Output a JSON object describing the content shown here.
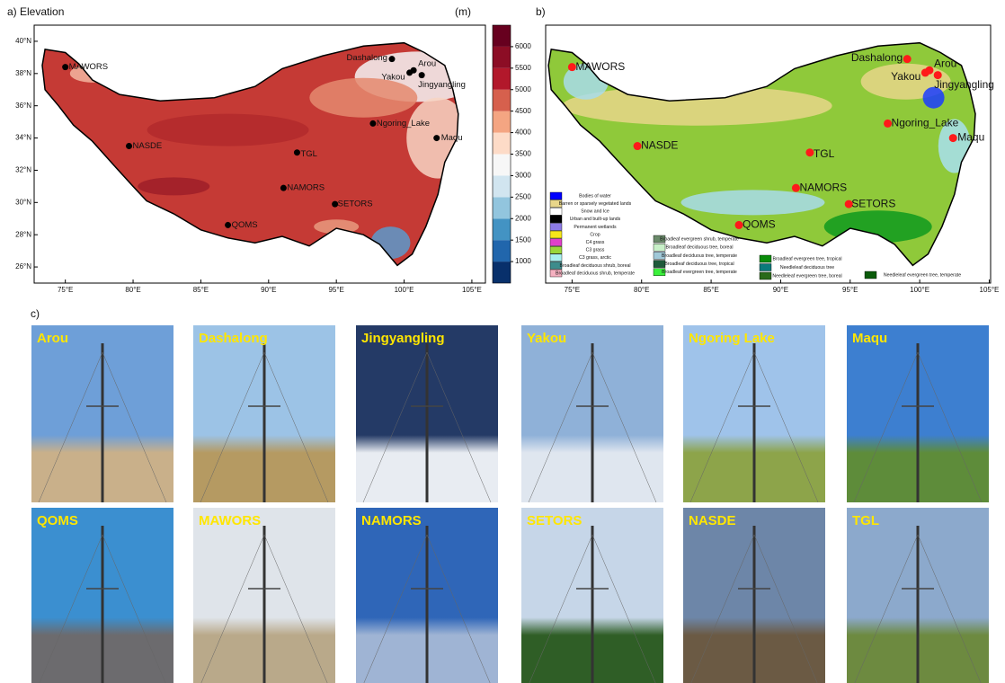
{
  "chart_data": [
    {
      "type": "map",
      "title": "a) Elevation",
      "colorbar_label": "(m)",
      "xlim": [
        72.7,
        106
      ],
      "ylim": [
        25,
        41
      ],
      "xticks": [
        {
          "value": 75,
          "label": "75°E"
        },
        {
          "value": 80,
          "label": "80°E"
        },
        {
          "value": 85,
          "label": "85°E"
        },
        {
          "value": 90,
          "label": "90°E"
        },
        {
          "value": 95,
          "label": "95°E"
        },
        {
          "value": 100,
          "label": "100°E"
        },
        {
          "value": 105,
          "label": "105°E"
        }
      ],
      "yticks": [
        {
          "value": 26,
          "label": "26°N"
        },
        {
          "value": 28,
          "label": "28°N"
        },
        {
          "value": 30,
          "label": "30°N"
        },
        {
          "value": 32,
          "label": "32°N"
        },
        {
          "value": 34,
          "label": "34°N"
        },
        {
          "value": 36,
          "label": "36°N"
        },
        {
          "value": 38,
          "label": "38°N"
        },
        {
          "value": 40,
          "label": "40°N"
        }
      ],
      "marker_color": "#000000",
      "stations": {
        "names": [
          "MAWORS",
          "Dashalong",
          "Arou",
          "Yakou",
          "Jingyangling",
          "Ngoring_Lake",
          "Maqu",
          "NASDE",
          "TGL",
          "NAMORS",
          "SETORS",
          "QOMS"
        ],
        "lon": [
          75.0,
          99.1,
          100.7,
          100.4,
          101.3,
          97.7,
          102.4,
          79.7,
          92.1,
          91.1,
          94.9,
          87.0
        ],
        "lat": [
          38.4,
          38.9,
          38.2,
          38.05,
          37.9,
          34.9,
          34.0,
          33.5,
          33.1,
          30.9,
          29.9,
          28.6
        ]
      },
      "colorbar": {
        "lim": [
          500,
          6500
        ],
        "ticks": [
          1000,
          1500,
          2000,
          2500,
          3000,
          3500,
          4000,
          4500,
          5000,
          5500,
          6000
        ],
        "colors": [
          "#08306b",
          "#2166ac",
          "#4393c3",
          "#92c5de",
          "#d1e5f0",
          "#f7f7f7",
          "#fddbc7",
          "#f4a582",
          "#d6604d",
          "#b2182b",
          "#8c0d25",
          "#67001f"
        ]
      }
    },
    {
      "type": "map",
      "title": "b)",
      "xlim": [
        73.1,
        105.1
      ],
      "ylim": [
        25,
        41
      ],
      "xticks": [
        {
          "value": 75,
          "label": "75°E"
        },
        {
          "value": 80,
          "label": "80°E"
        },
        {
          "value": 85,
          "label": "85°E"
        },
        {
          "value": 90,
          "label": "90°E"
        },
        {
          "value": 95,
          "label": "95°E"
        },
        {
          "value": 100,
          "label": "100°E"
        },
        {
          "value": 105,
          "label": "105°E"
        }
      ],
      "marker_color": "#ff1a1a",
      "stations": {
        "names": [
          "MAWORS",
          "Dashalong",
          "Arou",
          "Yakou",
          "Jingyangling",
          "Ngoring_Lake",
          "Maqu",
          "NASDE",
          "TGL",
          "NAMORS",
          "SETORS",
          "QOMS"
        ],
        "lon": [
          75.0,
          99.1,
          100.7,
          100.4,
          101.3,
          97.7,
          102.4,
          79.7,
          92.1,
          91.1,
          94.9,
          87.0
        ],
        "lat": [
          38.4,
          38.9,
          38.2,
          38.05,
          37.9,
          34.9,
          34.0,
          33.5,
          33.1,
          30.9,
          29.9,
          28.6
        ]
      },
      "legend": [
        {
          "name": "Bodies of water",
          "color": "#0000ff"
        },
        {
          "name": "Barren or sparsely vegetated lands",
          "color": "#e8d68a"
        },
        {
          "name": "Snow and Ice",
          "color": "#ffffff"
        },
        {
          "name": "Urban and built-up lands",
          "color": "#000000"
        },
        {
          "name": "Permanent wetlands",
          "color": "#8c7ae6"
        },
        {
          "name": "Crop",
          "color": "#f5e61b"
        },
        {
          "name": "C4 grass",
          "color": "#e040c8"
        },
        {
          "name": "C3 grass",
          "color": "#9ad63a"
        },
        {
          "name": "C3 grass, arctic",
          "color": "#a8f0f0"
        },
        {
          "name": "Broadleaf deciduous shrub, boreal",
          "color": "#3c8c8c"
        },
        {
          "name": "Broadleaf deciduous shrub, temperate",
          "color": "#f5b0c0"
        },
        {
          "name": "Broadleaf evergreen shrub, temperate",
          "color": "#6a8a6a"
        },
        {
          "name": "Broadleaf deciduous tree, boreal",
          "color": "#c8f0c8"
        },
        {
          "name": "Broadleaf deciduous tree, temperate",
          "color": "#a0c8d8"
        },
        {
          "name": "Broadleaf deciduous tree, tropical",
          "color": "#1f5a3a"
        },
        {
          "name": "Broadleaf evergreen tree, temperate",
          "color": "#3cf03c"
        },
        {
          "name": "Broadleaf evergreen tree, tropical",
          "color": "#0a8c0a"
        },
        {
          "name": "Needleleaf deciduous tree",
          "color": "#0a7a7a"
        },
        {
          "name": "Needleleaf evergreen tree, boreal",
          "color": "#2a6a1a"
        },
        {
          "name": "Needleleaf evergreen tree, temperate",
          "color": "#0a5a0a"
        }
      ]
    }
  ],
  "panel_c_label": "c)",
  "photos": [
    "Arou",
    "Dashalong",
    "Jingyangling",
    "Yakou",
    "Ngoring Lake",
    "Maqu",
    "QOMS",
    "MAWORS",
    "NAMORS",
    "SETORS",
    "NASDE",
    "TGL"
  ]
}
